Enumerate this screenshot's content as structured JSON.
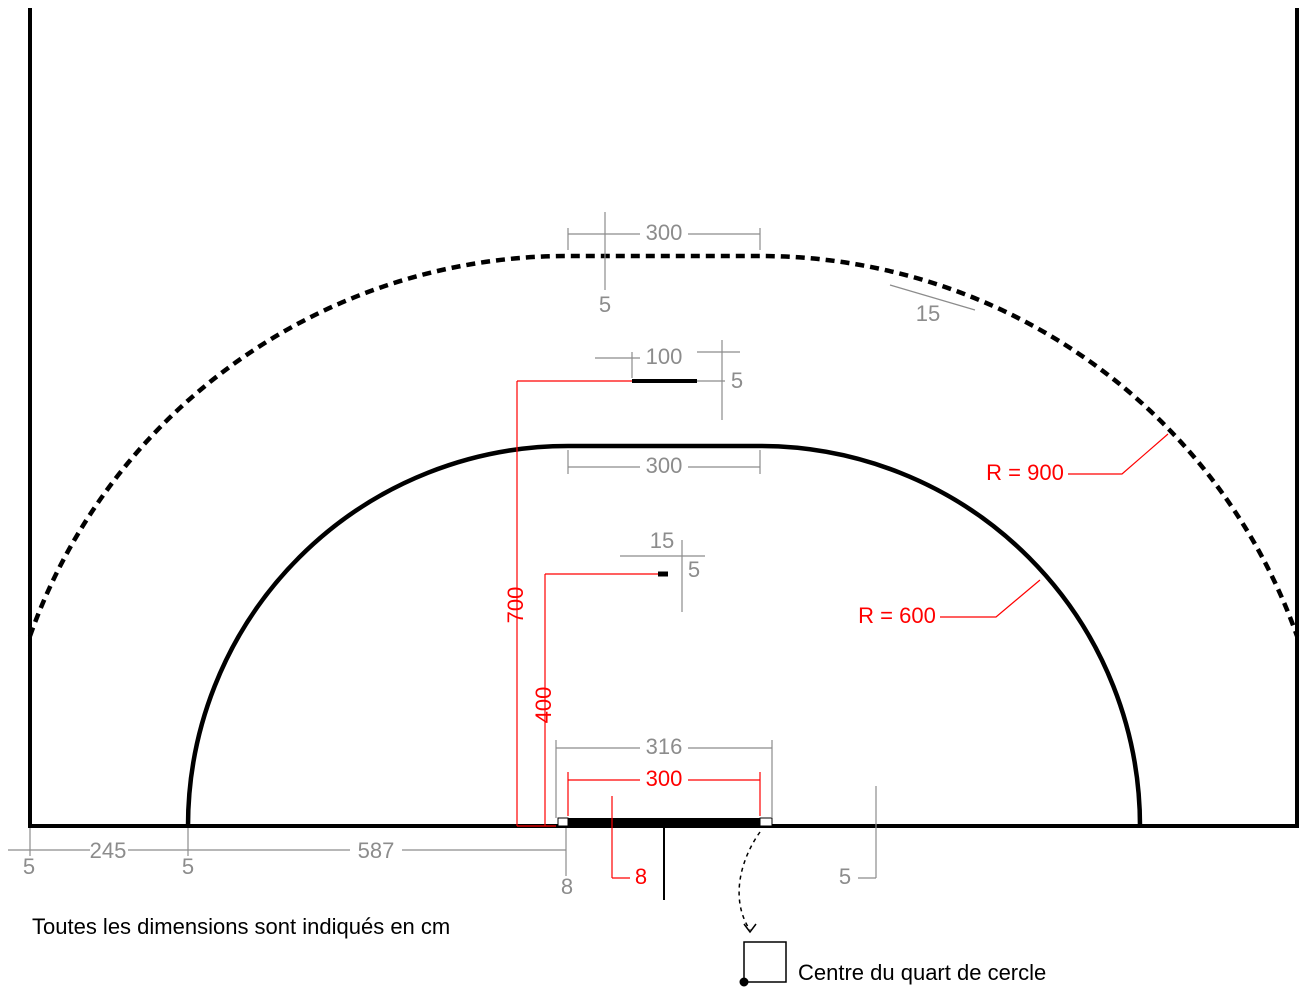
{
  "dimensions": [
    {
      "label": "300",
      "color": "#8c8c8c"
    },
    {
      "label": "5",
      "color": "#8c8c8c"
    },
    {
      "label": "15",
      "color": "#8c8c8c"
    },
    {
      "label": "100",
      "color": "#8c8c8c"
    },
    {
      "label": "5",
      "color": "#8c8c8c"
    },
    {
      "label": "300",
      "color": "#8c8c8c"
    },
    {
      "label": "15",
      "color": "#8c8c8c"
    },
    {
      "label": "5",
      "color": "#8c8c8c"
    },
    {
      "label": "R = 900",
      "color": "#ff0000"
    },
    {
      "label": "R = 600",
      "color": "#ff0000"
    },
    {
      "label": "700",
      "color": "#ff0000"
    },
    {
      "label": "400",
      "color": "#ff0000"
    },
    {
      "label": "316",
      "color": "#8c8c8c"
    },
    {
      "label": "300",
      "color": "#ff0000"
    },
    {
      "label": "5",
      "color": "#8c8c8c"
    },
    {
      "label": "245",
      "color": "#8c8c8c"
    },
    {
      "label": "5",
      "color": "#8c8c8c"
    },
    {
      "label": "587",
      "color": "#8c8c8c"
    },
    {
      "label": "8",
      "color": "#8c8c8c"
    },
    {
      "label": "8",
      "color": "#ff0000"
    },
    {
      "label": "5",
      "color": "#8c8c8c"
    }
  ],
  "note": "Toutes les dimensions sont indiqués en cm",
  "legend": "Centre du quart de cercle"
}
